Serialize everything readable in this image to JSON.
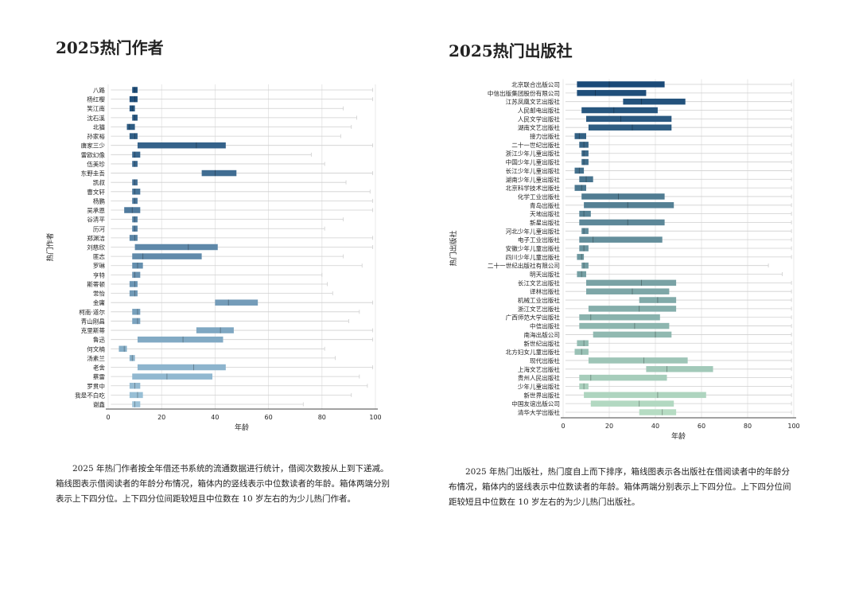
{
  "left": {
    "title": "2025热门作者",
    "caption": "2025 年热门作者按全年借还书系统的流通数据进行统计，借阅次数按从上到下递减。箱线图表示借阅读者的年龄分布情况，箱体内的竖线表示中位数读者的年龄。箱体两端分别表示上下四分位。上下四分位间距较短且中位数在 10 岁左右的为少儿热门作者。"
  },
  "right": {
    "title": "2025热门出版社",
    "caption": "2025 年热门出版社，热门度自上而下排序，箱线图表示各出版社在借阅读者中的年龄分布情况，箱体内的竖线表示中位数读者的年龄。箱体两端分别表示上下四分位。上下四分位间距较短且中位数在 10 岁左右的为少儿热门出版社。"
  },
  "chart_data": [
    {
      "type": "boxplot",
      "orientation": "horizontal",
      "xlabel": "年龄",
      "ylabel": "热门作者",
      "xlim": [
        0,
        100
      ],
      "xticks": [
        0,
        20,
        40,
        60,
        80,
        100
      ],
      "grid": true,
      "color_gradient": [
        "#1f4e79",
        "#9cc2d8"
      ],
      "categories": [
        "八路",
        "杨红樱",
        "笑江南",
        "沈石溪",
        "北猫",
        "孙家裕",
        "唐家三少",
        "雷欧幻像",
        "伍美珍",
        "东野圭吾",
        "凯叔",
        "曹文轩",
        "杨鹏",
        "吴承恩",
        "谷清平",
        "历河",
        "郑渊洁",
        "刘慈欣",
        "匪志",
        "罗琳",
        "亨特",
        "斯蒂顿",
        "常怡",
        "金庸",
        "柯南·道尔",
        "青山刚昌",
        "克里斯蒂",
        "鲁迅",
        "何文楠",
        "汤素兰",
        "老舍",
        "蔡雷",
        "罗贯中",
        "我是不白吃",
        "谢鑫"
      ],
      "boxes": [
        {
          "whisker_low": 1,
          "q1": 9,
          "median": 10,
          "q3": 11,
          "whisker_high": 99
        },
        {
          "whisker_low": 1,
          "q1": 8,
          "median": 10,
          "q3": 11,
          "whisker_high": 99
        },
        {
          "whisker_low": 1,
          "q1": 8,
          "median": 9,
          "q3": 10,
          "whisker_high": 88
        },
        {
          "whisker_low": 1,
          "q1": 9,
          "median": 10,
          "q3": 11,
          "whisker_high": 93
        },
        {
          "whisker_low": 1,
          "q1": 7,
          "median": 8,
          "q3": 10,
          "whisker_high": 91
        },
        {
          "whisker_low": 1,
          "q1": 8,
          "median": 10,
          "q3": 11,
          "whisker_high": 87
        },
        {
          "whisker_low": 1,
          "q1": 11,
          "median": 33,
          "q3": 44,
          "whisker_high": 99
        },
        {
          "whisker_low": 1,
          "q1": 9,
          "median": 10,
          "q3": 12,
          "whisker_high": 76
        },
        {
          "whisker_low": 1,
          "q1": 9,
          "median": 10,
          "q3": 11,
          "whisker_high": 81
        },
        {
          "whisker_low": 1,
          "q1": 35,
          "median": 40,
          "q3": 48,
          "whisker_high": 99
        },
        {
          "whisker_low": 1,
          "q1": 9,
          "median": 10,
          "q3": 11,
          "whisker_high": 89
        },
        {
          "whisker_low": 1,
          "q1": 9,
          "median": 10,
          "q3": 12,
          "whisker_high": 98
        },
        {
          "whisker_low": 1,
          "q1": 9,
          "median": 10,
          "q3": 11,
          "whisker_high": 99
        },
        {
          "whisker_low": 1,
          "q1": 6,
          "median": 9,
          "q3": 12,
          "whisker_high": 99
        },
        {
          "whisker_low": 1,
          "q1": 9,
          "median": 10,
          "q3": 11,
          "whisker_high": 88
        },
        {
          "whisker_low": 1,
          "q1": 9,
          "median": 10,
          "q3": 11,
          "whisker_high": 81
        },
        {
          "whisker_low": 1,
          "q1": 8,
          "median": 10,
          "q3": 11,
          "whisker_high": 99
        },
        {
          "whisker_low": 1,
          "q1": 10,
          "median": 30,
          "q3": 41,
          "whisker_high": 99
        },
        {
          "whisker_low": 1,
          "q1": 9,
          "median": 13,
          "q3": 35,
          "whisker_high": 88
        },
        {
          "whisker_low": 1,
          "q1": 9,
          "median": 11,
          "q3": 13,
          "whisker_high": 95
        },
        {
          "whisker_low": 1,
          "q1": 9,
          "median": 10,
          "q3": 12,
          "whisker_high": 80
        },
        {
          "whisker_low": 1,
          "q1": 8,
          "median": 10,
          "q3": 11,
          "whisker_high": 82
        },
        {
          "whisker_low": 1,
          "q1": 8,
          "median": 10,
          "q3": 11,
          "whisker_high": 84
        },
        {
          "whisker_low": 1,
          "q1": 40,
          "median": 45,
          "q3": 56,
          "whisker_high": 99
        },
        {
          "whisker_low": 1,
          "q1": 9,
          "median": 11,
          "q3": 12,
          "whisker_high": 94
        },
        {
          "whisker_low": 1,
          "q1": 9,
          "median": 11,
          "q3": 12,
          "whisker_high": 90
        },
        {
          "whisker_low": 1,
          "q1": 33,
          "median": 42,
          "q3": 47,
          "whisker_high": 99
        },
        {
          "whisker_low": 1,
          "q1": 11,
          "median": 28,
          "q3": 43,
          "whisker_high": 99
        },
        {
          "whisker_low": 1,
          "q1": 4,
          "median": 6,
          "q3": 7,
          "whisker_high": 81
        },
        {
          "whisker_low": 1,
          "q1": 8,
          "median": 9,
          "q3": 10,
          "whisker_high": 85
        },
        {
          "whisker_low": 1,
          "q1": 11,
          "median": 32,
          "q3": 44,
          "whisker_high": 99
        },
        {
          "whisker_low": 1,
          "q1": 9,
          "median": 22,
          "q3": 39,
          "whisker_high": 94
        },
        {
          "whisker_low": 1,
          "q1": 8,
          "median": 10,
          "q3": 12,
          "whisker_high": 97
        },
        {
          "whisker_low": 1,
          "q1": 8,
          "median": 11,
          "q3": 13,
          "whisker_high": 91
        },
        {
          "whisker_low": 1,
          "q1": 9,
          "median": 10,
          "q3": 12,
          "whisker_high": 73
        }
      ]
    },
    {
      "type": "boxplot",
      "orientation": "horizontal",
      "xlabel": "年龄",
      "ylabel": "热门出版社",
      "xlim": [
        0,
        100
      ],
      "xticks": [
        0,
        20,
        40,
        60,
        80,
        100
      ],
      "grid": true,
      "color_gradient": [
        "#1b4a78",
        "#b6dcc3"
      ],
      "categories": [
        "北京联合出版公司",
        "中信出版集团股份有限公司",
        "江苏凤凰文艺出版社",
        "人民邮电出版社",
        "人民文学出版社",
        "湖南文艺出版社",
        "接力出版社",
        "二十一世纪出版社",
        "浙江少年儿童出版社",
        "中国少年儿童出版社",
        "长江少年儿童出版社",
        "湖南少年儿童出版社",
        "北京科学技术出版社",
        "化学工业出版社",
        "青岛出版社",
        "天地出版社",
        "新星出版社",
        "河北少年儿童出版社",
        "电子工业出版社",
        "安徽少年儿童出版社",
        "四川少年儿童出版社",
        "二十一世纪出版社有限公司",
        "明天出版社",
        "长江文艺出版社",
        "译林出版社",
        "机械工业出版社",
        "浙江文艺出版社",
        "广西师范大学出版社",
        "中信出版社",
        "南海出版公司",
        "新世纪出版社",
        "北方妇女儿童出版社",
        "现代出版社",
        "上海文艺出版社",
        "贵州人民出版社",
        "少年儿童出版社",
        "新世界出版社",
        "中国友谊出版公司",
        "清华大学出版社"
      ],
      "boxes": [
        {
          "whisker_low": 1,
          "q1": 6,
          "median": 20,
          "q3": 44,
          "whisker_high": 99
        },
        {
          "whisker_low": 1,
          "q1": 6,
          "median": 14,
          "q3": 36,
          "whisker_high": 99
        },
        {
          "whisker_low": 1,
          "q1": 26,
          "median": 34,
          "q3": 53,
          "whisker_high": 99
        },
        {
          "whisker_low": 1,
          "q1": 8,
          "median": 22,
          "q3": 41,
          "whisker_high": 99
        },
        {
          "whisker_low": 1,
          "q1": 10,
          "median": 25,
          "q3": 47,
          "whisker_high": 99
        },
        {
          "whisker_low": 1,
          "q1": 11,
          "median": 30,
          "q3": 47,
          "whisker_high": 99
        },
        {
          "whisker_low": 1,
          "q1": 5,
          "median": 7,
          "q3": 10,
          "whisker_high": 99
        },
        {
          "whisker_low": 1,
          "q1": 7,
          "median": 9,
          "q3": 11,
          "whisker_high": 99
        },
        {
          "whisker_low": 1,
          "q1": 8,
          "median": 9,
          "q3": 11,
          "whisker_high": 99
        },
        {
          "whisker_low": 1,
          "q1": 8,
          "median": 9,
          "q3": 11,
          "whisker_high": 99
        },
        {
          "whisker_low": 1,
          "q1": 5,
          "median": 7,
          "q3": 9,
          "whisker_high": 99
        },
        {
          "whisker_low": 1,
          "q1": 7,
          "median": 10,
          "q3": 13,
          "whisker_high": 99
        },
        {
          "whisker_low": 1,
          "q1": 5,
          "median": 8,
          "q3": 10,
          "whisker_high": 99
        },
        {
          "whisker_low": 1,
          "q1": 8,
          "median": 24,
          "q3": 44,
          "whisker_high": 99
        },
        {
          "whisker_low": 1,
          "q1": 9,
          "median": 28,
          "q3": 48,
          "whisker_high": 99
        },
        {
          "whisker_low": 1,
          "q1": 7,
          "median": 9,
          "q3": 12,
          "whisker_high": 99
        },
        {
          "whisker_low": 1,
          "q1": 7,
          "median": 28,
          "q3": 44,
          "whisker_high": 99
        },
        {
          "whisker_low": 1,
          "q1": 8,
          "median": 9,
          "q3": 11,
          "whisker_high": 99
        },
        {
          "whisker_low": 1,
          "q1": 7,
          "median": 13,
          "q3": 43,
          "whisker_high": 99
        },
        {
          "whisker_low": 1,
          "q1": 7,
          "median": 9,
          "q3": 11,
          "whisker_high": 99
        },
        {
          "whisker_low": 1,
          "q1": 6,
          "median": 8,
          "q3": 9,
          "whisker_high": 99
        },
        {
          "whisker_low": 1,
          "q1": 8,
          "median": 9,
          "q3": 11,
          "whisker_high": 89
        },
        {
          "whisker_low": 1,
          "q1": 6,
          "median": 8,
          "q3": 10,
          "whisker_high": 95
        },
        {
          "whisker_low": 1,
          "q1": 10,
          "median": 34,
          "q3": 49,
          "whisker_high": 99
        },
        {
          "whisker_low": 1,
          "q1": 10,
          "median": 30,
          "q3": 46,
          "whisker_high": 99
        },
        {
          "whisker_low": 1,
          "q1": 33,
          "median": 41,
          "q3": 49,
          "whisker_high": 99
        },
        {
          "whisker_low": 1,
          "q1": 11,
          "median": 33,
          "q3": 49,
          "whisker_high": 99
        },
        {
          "whisker_low": 1,
          "q1": 7,
          "median": 12,
          "q3": 42,
          "whisker_high": 99
        },
        {
          "whisker_low": 1,
          "q1": 7,
          "median": 31,
          "q3": 46,
          "whisker_high": 99
        },
        {
          "whisker_low": 1,
          "q1": 13,
          "median": 40,
          "q3": 47,
          "whisker_high": 99
        },
        {
          "whisker_low": 1,
          "q1": 6,
          "median": 9,
          "q3": 11,
          "whisker_high": 99
        },
        {
          "whisker_low": 1,
          "q1": 5,
          "median": 8,
          "q3": 11,
          "whisker_high": 99
        },
        {
          "whisker_low": 1,
          "q1": 11,
          "median": 35,
          "q3": 54,
          "whisker_high": 99
        },
        {
          "whisker_low": 1,
          "q1": 36,
          "median": 45,
          "q3": 65,
          "whisker_high": 99
        },
        {
          "whisker_low": 1,
          "q1": 7,
          "median": 12,
          "q3": 45,
          "whisker_high": 99
        },
        {
          "whisker_low": 1,
          "q1": 7,
          "median": 9,
          "q3": 11,
          "whisker_high": 99
        },
        {
          "whisker_low": 1,
          "q1": 9,
          "median": 41,
          "q3": 62,
          "whisker_high": 99
        },
        {
          "whisker_low": 1,
          "q1": 12,
          "median": 33,
          "q3": 48,
          "whisker_high": 99
        },
        {
          "whisker_low": 1,
          "q1": 33,
          "median": 43,
          "q3": 49,
          "whisker_high": 99
        }
      ]
    }
  ]
}
